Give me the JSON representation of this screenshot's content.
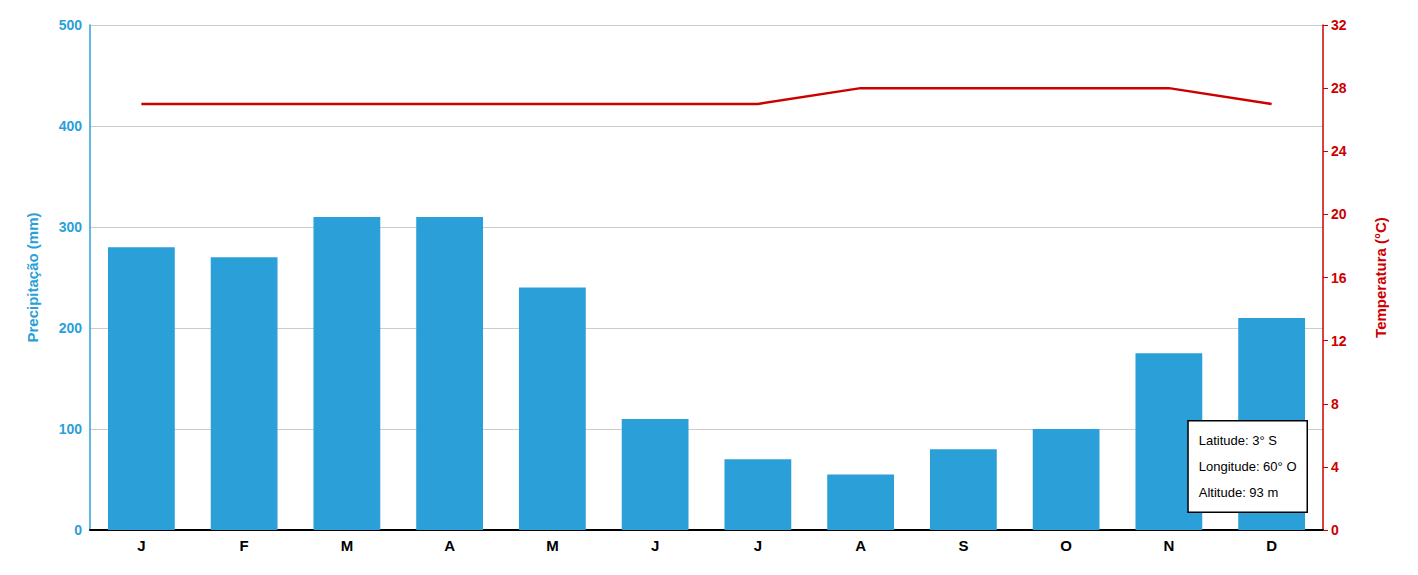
{
  "chart_data": {
    "type": "bar",
    "categories": [
      "J",
      "F",
      "M",
      "A",
      "M",
      "J",
      "J",
      "A",
      "S",
      "O",
      "N",
      "D"
    ],
    "series": [
      {
        "type": "bar",
        "color": "#2b9fd8",
        "values": [
          280,
          270,
          310,
          310,
          240,
          110,
          70,
          55,
          80,
          100,
          175,
          210
        ]
      },
      {
        "type": "line",
        "color": "#cc0000",
        "axis": "y2",
        "values": [
          27,
          27,
          27,
          27,
          27,
          27,
          27,
          28,
          28,
          28,
          28,
          27
        ]
      }
    ],
    "ylabel": "Precipitação (mm)",
    "y2label": "Temperatura (°C)",
    "ylim": [
      0,
      500
    ],
    "yticks": [
      0,
      100,
      200,
      300,
      400,
      500
    ],
    "y2lim": [
      0,
      32
    ],
    "y2ticks": [
      0,
      4,
      8,
      12,
      16,
      20,
      24,
      28,
      32
    ],
    "grid": true,
    "annotations": [
      "Latitude: 3° S\nLongitude: 60° O\nAltitude: 93 m"
    ]
  }
}
